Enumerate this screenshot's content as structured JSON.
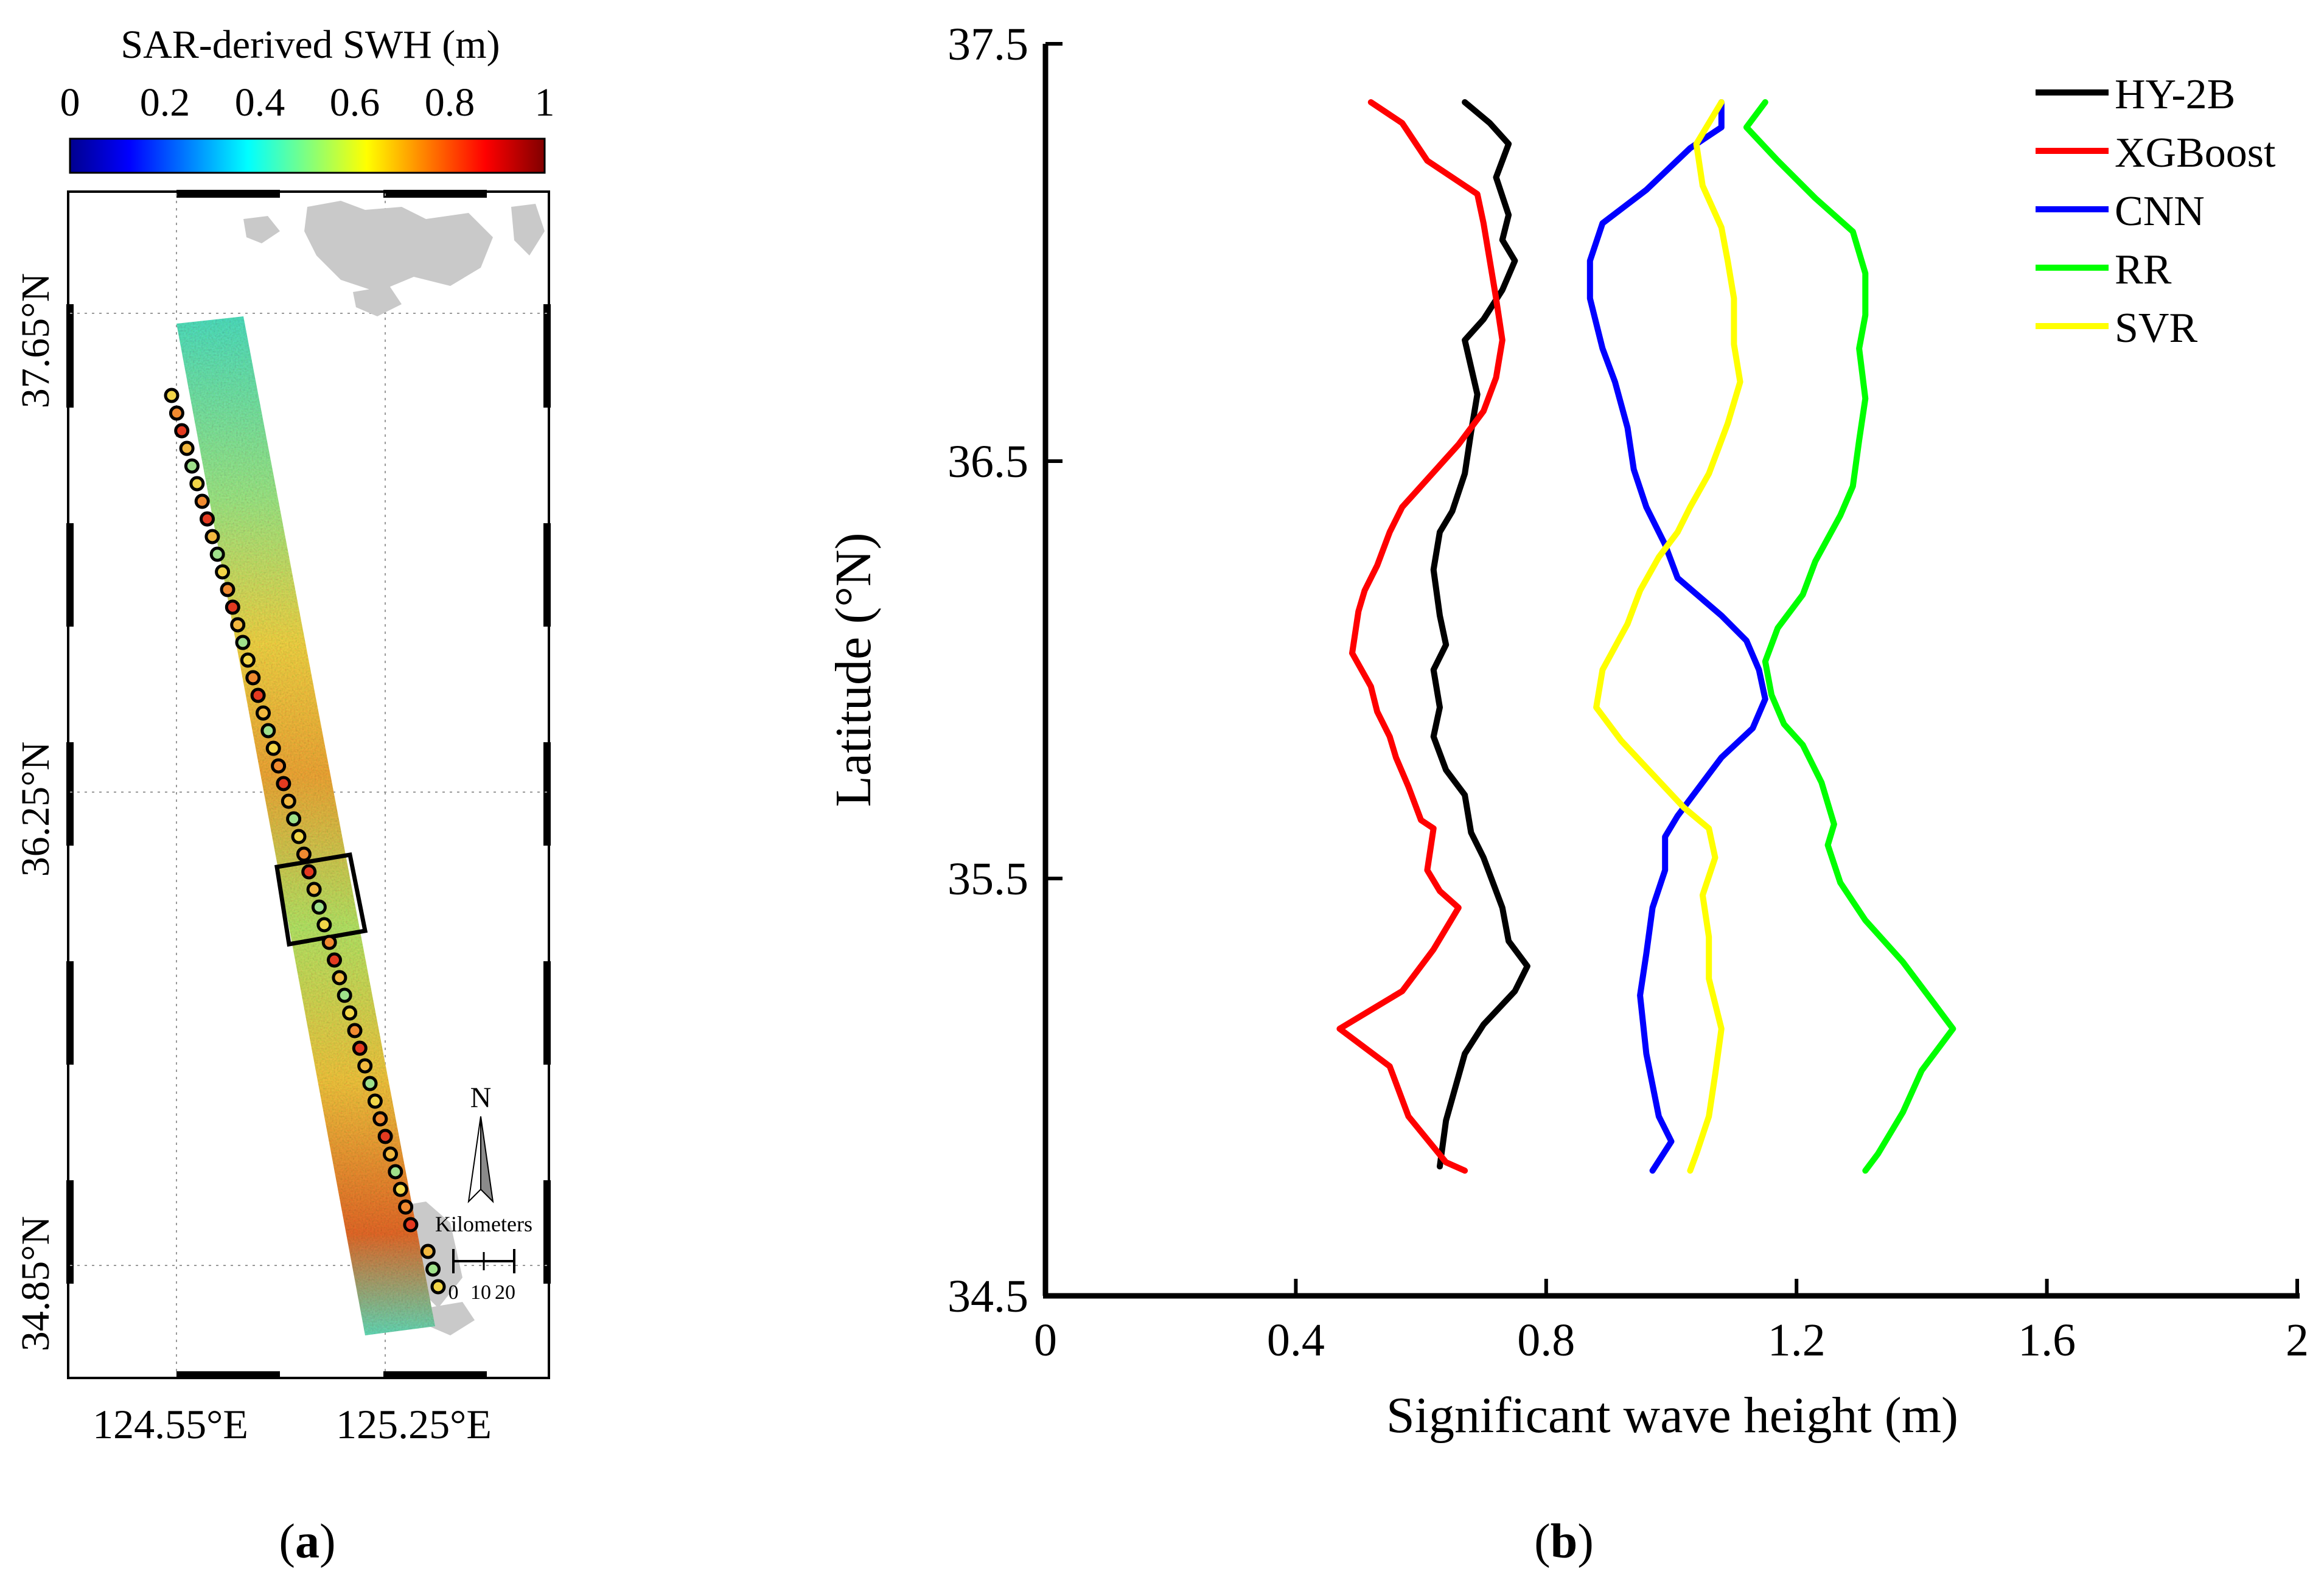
{
  "chart_data": [
    {
      "type": "map",
      "panel_label": "a",
      "colorbar": {
        "title": "SAR-derived SWH (m)",
        "ticks": [
          "0",
          "0.2",
          "0.4",
          "0.6",
          "0.8",
          "1"
        ],
        "range": [
          0,
          1
        ],
        "colormap": "jet"
      },
      "lat_tick_labels": [
        "37.65°N",
        "36.25°N",
        "34.85°N"
      ],
      "lon_tick_labels": [
        "124.55°E",
        "125.25°E"
      ],
      "north_arrow": "N",
      "scale_bar": {
        "title": "Kilometers",
        "ticks": [
          "0",
          "10",
          "20"
        ]
      },
      "track_points": 51
    },
    {
      "type": "line",
      "panel_label": "b",
      "xlabel": "Significant wave height (m)",
      "ylabel": "Latitude (°N)",
      "xlim": [
        0,
        2
      ],
      "ylim": [
        34.5,
        37.5
      ],
      "xticks": [
        "0",
        "0.4",
        "0.8",
        "1.2",
        "1.6",
        "2"
      ],
      "yticks": [
        "34.5",
        "35.5",
        "36.5",
        "37.5"
      ],
      "legend_position": "top-right",
      "series": [
        {
          "name": "HY-2B",
          "color": "#000000",
          "points": [
            [
              0.67,
              37.36
            ],
            [
              0.71,
              37.31
            ],
            [
              0.74,
              37.26
            ],
            [
              0.72,
              37.18
            ],
            [
              0.74,
              37.09
            ],
            [
              0.73,
              37.03
            ],
            [
              0.75,
              36.98
            ],
            [
              0.73,
              36.91
            ],
            [
              0.7,
              36.84
            ],
            [
              0.67,
              36.79
            ],
            [
              0.69,
              36.66
            ],
            [
              0.68,
              36.57
            ],
            [
              0.67,
              36.47
            ],
            [
              0.65,
              36.38
            ],
            [
              0.63,
              36.33
            ],
            [
              0.62,
              36.24
            ],
            [
              0.63,
              36.13
            ],
            [
              0.64,
              36.06
            ],
            [
              0.62,
              36.0
            ],
            [
              0.63,
              35.91
            ],
            [
              0.62,
              35.84
            ],
            [
              0.64,
              35.76
            ],
            [
              0.67,
              35.7
            ],
            [
              0.68,
              35.61
            ],
            [
              0.7,
              35.55
            ],
            [
              0.73,
              35.43
            ],
            [
              0.74,
              35.35
            ],
            [
              0.77,
              35.29
            ],
            [
              0.75,
              35.23
            ],
            [
              0.7,
              35.15
            ],
            [
              0.67,
              35.08
            ],
            [
              0.64,
              34.92
            ],
            [
              0.63,
              34.81
            ]
          ]
        },
        {
          "name": "XGBoost",
          "color": "#ff0000",
          "points": [
            [
              0.52,
              37.36
            ],
            [
              0.57,
              37.31
            ],
            [
              0.61,
              37.22
            ],
            [
              0.69,
              37.14
            ],
            [
              0.7,
              37.07
            ],
            [
              0.71,
              36.98
            ],
            [
              0.72,
              36.89
            ],
            [
              0.73,
              36.79
            ],
            [
              0.72,
              36.7
            ],
            [
              0.7,
              36.62
            ],
            [
              0.66,
              36.54
            ],
            [
              0.63,
              36.49
            ],
            [
              0.57,
              36.39
            ],
            [
              0.55,
              36.33
            ],
            [
              0.53,
              36.25
            ],
            [
              0.51,
              36.19
            ],
            [
              0.5,
              36.14
            ],
            [
              0.49,
              36.04
            ],
            [
              0.52,
              35.96
            ],
            [
              0.53,
              35.9
            ],
            [
              0.55,
              35.84
            ],
            [
              0.56,
              35.79
            ],
            [
              0.58,
              35.72
            ],
            [
              0.6,
              35.64
            ],
            [
              0.62,
              35.62
            ],
            [
              0.61,
              35.52
            ],
            [
              0.63,
              35.47
            ],
            [
              0.66,
              35.43
            ],
            [
              0.62,
              35.33
            ],
            [
              0.57,
              35.23
            ],
            [
              0.47,
              35.14
            ],
            [
              0.55,
              35.05
            ],
            [
              0.58,
              34.93
            ],
            [
              0.64,
              34.82
            ],
            [
              0.67,
              34.8
            ]
          ]
        },
        {
          "name": "CNN",
          "color": "#0000ff",
          "points": [
            [
              1.08,
              37.36
            ],
            [
              1.08,
              37.3
            ],
            [
              1.03,
              37.25
            ],
            [
              0.96,
              37.15
            ],
            [
              0.89,
              37.07
            ],
            [
              0.87,
              36.98
            ],
            [
              0.87,
              36.89
            ],
            [
              0.89,
              36.77
            ],
            [
              0.91,
              36.69
            ],
            [
              0.93,
              36.58
            ],
            [
              0.94,
              36.48
            ],
            [
              0.96,
              36.39
            ],
            [
              0.99,
              36.3
            ],
            [
              1.01,
              36.22
            ],
            [
              1.08,
              36.13
            ],
            [
              1.12,
              36.07
            ],
            [
              1.14,
              36.0
            ],
            [
              1.15,
              35.93
            ],
            [
              1.13,
              35.86
            ],
            [
              1.08,
              35.79
            ],
            [
              1.05,
              35.73
            ],
            [
              1.01,
              35.65
            ],
            [
              0.99,
              35.6
            ],
            [
              0.99,
              35.52
            ],
            [
              0.97,
              35.43
            ],
            [
              0.96,
              35.32
            ],
            [
              0.95,
              35.22
            ],
            [
              0.96,
              35.08
            ],
            [
              0.98,
              34.93
            ],
            [
              1.0,
              34.87
            ],
            [
              0.97,
              34.8
            ]
          ]
        },
        {
          "name": "RR",
          "color": "#00ff00",
          "points": [
            [
              1.15,
              37.36
            ],
            [
              1.12,
              37.3
            ],
            [
              1.17,
              37.22
            ],
            [
              1.23,
              37.13
            ],
            [
              1.29,
              37.05
            ],
            [
              1.31,
              36.95
            ],
            [
              1.31,
              36.85
            ],
            [
              1.3,
              36.77
            ],
            [
              1.31,
              36.65
            ],
            [
              1.3,
              36.55
            ],
            [
              1.29,
              36.44
            ],
            [
              1.27,
              36.37
            ],
            [
              1.23,
              36.26
            ],
            [
              1.21,
              36.18
            ],
            [
              1.17,
              36.1
            ],
            [
              1.15,
              36.02
            ],
            [
              1.16,
              35.94
            ],
            [
              1.18,
              35.87
            ],
            [
              1.21,
              35.82
            ],
            [
              1.24,
              35.73
            ],
            [
              1.26,
              35.63
            ],
            [
              1.25,
              35.58
            ],
            [
              1.27,
              35.49
            ],
            [
              1.31,
              35.4
            ],
            [
              1.37,
              35.3
            ],
            [
              1.42,
              35.2
            ],
            [
              1.45,
              35.14
            ],
            [
              1.4,
              35.04
            ],
            [
              1.37,
              34.94
            ],
            [
              1.33,
              34.84
            ],
            [
              1.31,
              34.8
            ]
          ]
        },
        {
          "name": "SVR",
          "color": "#ffff00",
          "points": [
            [
              1.08,
              37.36
            ],
            [
              1.06,
              37.31
            ],
            [
              1.04,
              37.26
            ],
            [
              1.05,
              37.16
            ],
            [
              1.08,
              37.06
            ],
            [
              1.09,
              36.98
            ],
            [
              1.1,
              36.89
            ],
            [
              1.1,
              36.78
            ],
            [
              1.11,
              36.69
            ],
            [
              1.09,
              36.59
            ],
            [
              1.06,
              36.47
            ],
            [
              1.03,
              36.39
            ],
            [
              1.01,
              36.33
            ],
            [
              0.98,
              36.27
            ],
            [
              0.95,
              36.19
            ],
            [
              0.93,
              36.11
            ],
            [
              0.89,
              36.0
            ],
            [
              0.88,
              35.91
            ],
            [
              0.92,
              35.83
            ],
            [
              0.97,
              35.75
            ],
            [
              1.02,
              35.67
            ],
            [
              1.06,
              35.62
            ],
            [
              1.07,
              35.55
            ],
            [
              1.05,
              35.46
            ],
            [
              1.06,
              35.36
            ],
            [
              1.06,
              35.26
            ],
            [
              1.08,
              35.14
            ],
            [
              1.07,
              35.03
            ],
            [
              1.06,
              34.93
            ],
            [
              1.04,
              34.84
            ],
            [
              1.03,
              34.8
            ]
          ]
        }
      ]
    }
  ]
}
